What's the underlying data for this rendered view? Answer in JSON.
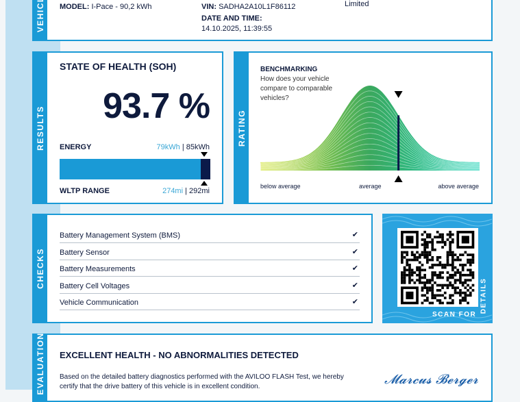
{
  "vehicle": {
    "tab": "VEHICLE",
    "model_label": "MODEL:",
    "model_value": "I-Pace - 90,2 kWh",
    "vin_label": "VIN:",
    "vin_value": "SADHA2A10L1F86112",
    "date_label": "DATE AND TIME:",
    "date_value": "14.10.2025, 11:39:55",
    "right_value": "Limited"
  },
  "results": {
    "tab": "RESULTS",
    "title": "STATE OF HEALTH (SOH)",
    "soh": "93.7 %",
    "energy_label": "ENERGY",
    "energy_current": "79kWh",
    "energy_sep": " | ",
    "energy_total": "85kWh",
    "range_label": "WLTP RANGE",
    "range_current": "274mi",
    "range_sep": " | ",
    "range_total": "292mi",
    "fill_fraction": 0.937,
    "colors": {
      "bar": "#1a9ad6",
      "remainder": "#0b1a4a"
    }
  },
  "rating": {
    "tab": "RATING",
    "title": "BENCHMARKING",
    "question": "How does your vehicle compare to comparable vehicles?",
    "axis": {
      "left": "below average",
      "center": "average",
      "right": "above average"
    },
    "marker_fraction": 0.63,
    "colors": {
      "start": "#d4e43a",
      "mid": "#3aa85e",
      "end": "#1fd3b8"
    }
  },
  "checks": {
    "tab": "CHECKS",
    "items": [
      "Battery Management System (BMS)",
      "Battery Sensor",
      "Battery Measurements",
      "Battery Cell Voltages",
      "Vehicle Communication"
    ],
    "check_icon": "check-icon"
  },
  "qr": {
    "scan_label": "SCAN FOR",
    "details_label": "DETAILS"
  },
  "evaluation": {
    "tab": "EVALUATION",
    "title": "EXCELLENT HEALTH - NO ABNORMALITIES DETECTED",
    "text_line1": "Based on the detailed battery diagnostics performed with the AVILOO FLASH Test, we hereby",
    "text_line2": "certify that the drive battery of this vehicle is in excellent condition.",
    "signature": "Marcus Berger"
  }
}
